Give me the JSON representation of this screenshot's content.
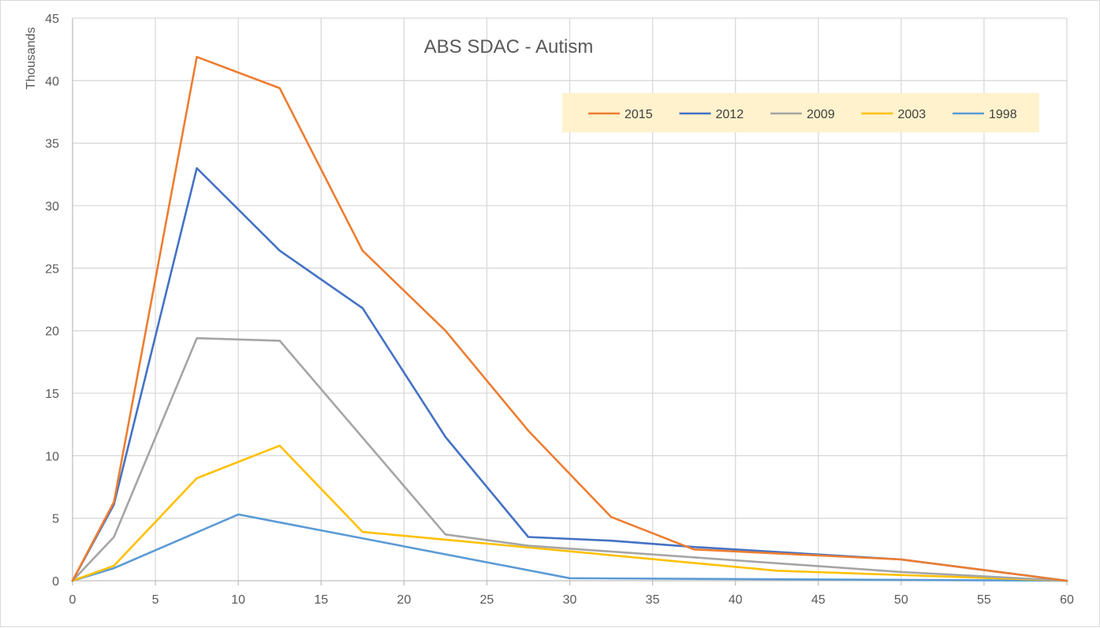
{
  "chart_data": {
    "type": "line",
    "title": "ABS SDAC - Autism",
    "xlabel": "",
    "ylabel": "Thousands",
    "xlim": [
      0,
      60
    ],
    "ylim": [
      0,
      45
    ],
    "x_ticks": [
      0,
      5,
      10,
      15,
      20,
      25,
      30,
      35,
      40,
      45,
      50,
      55,
      60
    ],
    "y_ticks": [
      0,
      5,
      10,
      15,
      20,
      25,
      30,
      35,
      40,
      45
    ],
    "grid": true,
    "legend_position": "top-right",
    "series": [
      {
        "name": "2015",
        "color": "#ED7D31",
        "points": [
          [
            0,
            0
          ],
          [
            2.5,
            6.3
          ],
          [
            7.5,
            41.9
          ],
          [
            12.5,
            39.4
          ],
          [
            17.5,
            26.4
          ],
          [
            22.5,
            20.0
          ],
          [
            27.5,
            12.0
          ],
          [
            32.5,
            5.1
          ],
          [
            37.5,
            2.5
          ],
          [
            50,
            1.7
          ],
          [
            60,
            0
          ]
        ]
      },
      {
        "name": "2012",
        "color": "#4472C4",
        "points": [
          [
            0,
            0
          ],
          [
            2.5,
            6.1
          ],
          [
            7.5,
            33.0
          ],
          [
            12.5,
            26.4
          ],
          [
            17.5,
            21.8
          ],
          [
            22.5,
            11.5
          ],
          [
            27.5,
            3.5
          ],
          [
            32.5,
            3.2
          ],
          [
            37.5,
            2.7
          ],
          [
            50,
            1.7
          ],
          [
            60,
            0
          ]
        ]
      },
      {
        "name": "2009",
        "color": "#A5A5A5",
        "points": [
          [
            0,
            0
          ],
          [
            2.5,
            3.5
          ],
          [
            7.5,
            19.4
          ],
          [
            12.5,
            19.2
          ],
          [
            22.5,
            3.7
          ],
          [
            27.5,
            2.8
          ],
          [
            50,
            0.7
          ],
          [
            60,
            0
          ]
        ]
      },
      {
        "name": "2003",
        "color": "#FFC000",
        "points": [
          [
            0,
            0
          ],
          [
            2.5,
            1.2
          ],
          [
            7.5,
            8.2
          ],
          [
            12.5,
            10.8
          ],
          [
            17.5,
            3.9
          ],
          [
            42.5,
            0.8
          ],
          [
            60,
            0
          ]
        ]
      },
      {
        "name": "1998",
        "color": "#5B9BD5",
        "points": [
          [
            0,
            0
          ],
          [
            2.5,
            1.0
          ],
          [
            10,
            5.3
          ],
          [
            30,
            0.2
          ],
          [
            60,
            0
          ]
        ]
      }
    ]
  }
}
